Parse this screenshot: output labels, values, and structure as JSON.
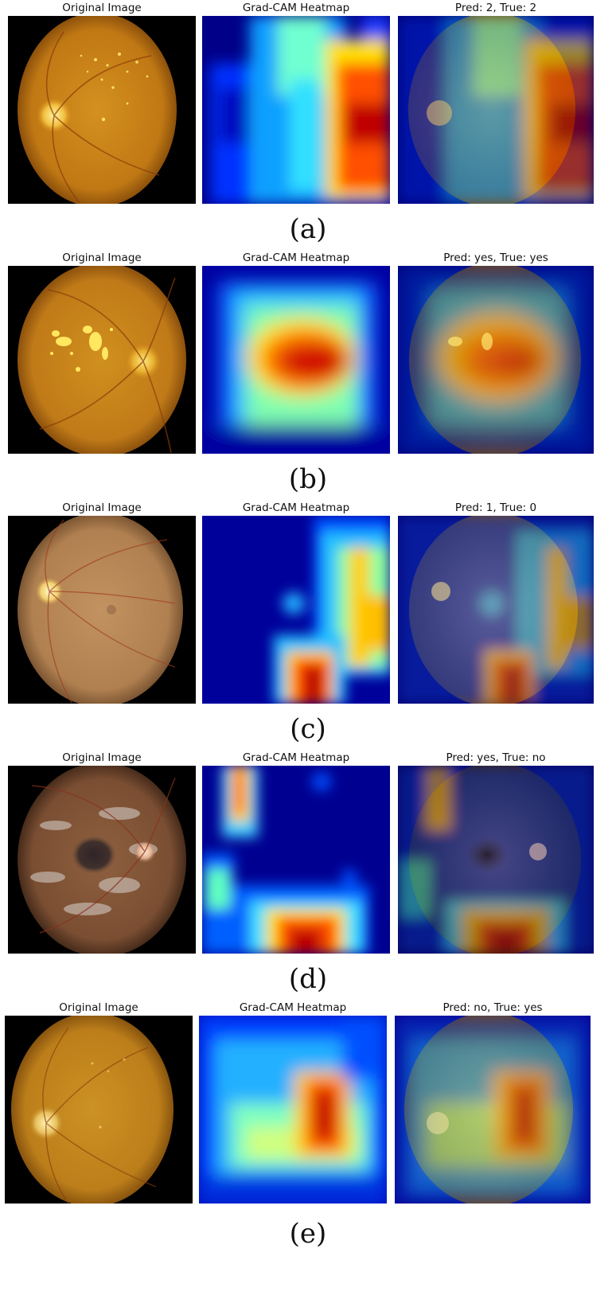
{
  "figure": {
    "rows": [
      {
        "label": "(a)",
        "titles": [
          "Original Image",
          "Grad-CAM Heatmap",
          "Pred: 2, True: 2"
        ],
        "fundus": {
          "tone": "#c98316",
          "edge": "#7a4408",
          "disc": "left",
          "lesions": "yellow-spots"
        },
        "heatmap": {
          "hot_region": "right-vertical-band"
        }
      },
      {
        "label": "(b)",
        "titles": [
          "Original Image",
          "Grad-CAM Heatmap",
          "Pred: yes, True: yes"
        ],
        "fundus": {
          "tone": "#c8861a",
          "edge": "#7a4608",
          "disc": "right",
          "lesions": "yellow-clusters"
        },
        "heatmap": {
          "hot_region": "center-blob"
        }
      },
      {
        "label": "(c)",
        "titles": [
          "Original Image",
          "Grad-CAM Heatmap",
          "Pred: 1, True: 0"
        ],
        "fundus": {
          "tone": "#b98a52",
          "edge": "#6a4a2a",
          "disc": "left",
          "lesions": "none"
        },
        "heatmap": {
          "hot_region": "bottom-center-and-right-column"
        }
      },
      {
        "label": "(d)",
        "titles": [
          "Original Image",
          "Grad-CAM Heatmap",
          "Pred: yes, True: no"
        ],
        "fundus": {
          "tone": "#8a5a3a",
          "edge": "#3c2416",
          "disc": "right",
          "lesions": "pale-streaks"
        },
        "heatmap": {
          "hot_region": "bottom-center"
        }
      },
      {
        "label": "(e)",
        "titles": [
          "Original Image",
          "Grad-CAM Heatmap",
          "Pred: no, True: yes"
        ],
        "fundus": {
          "tone": "#c58a1e",
          "edge": "#7a4a0a",
          "disc": "left",
          "lesions": "faint"
        },
        "heatmap": {
          "hot_region": "right-center-blob"
        }
      }
    ]
  }
}
